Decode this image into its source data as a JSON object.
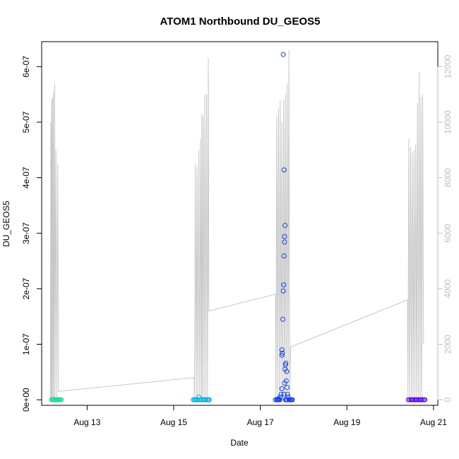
{
  "chart_data": {
    "type": "scatter",
    "title": "ATOM1 Northbound DU_GEOS5",
    "xlabel": "Date",
    "ylabel": "DU_GEOS5",
    "x_ticks": [
      "Aug 13",
      "Aug 15",
      "Aug 17",
      "Aug 19",
      "Aug 21"
    ],
    "x_tick_days": [
      13,
      15,
      17,
      19,
      21
    ],
    "xlim_days": [
      11.95,
      21.1
    ],
    "y_ticks": [
      "0e+00",
      "1e-07",
      "2e-07",
      "3e-07",
      "4e-07",
      "5e-07",
      "6e-07"
    ],
    "y_tick_values": [
      0,
      1e-07,
      2e-07,
      3e-07,
      4e-07,
      5e-07,
      6e-07
    ],
    "ylim": [
      -1e-08,
      6.45e-07
    ],
    "y2_ticks": [
      "0",
      "2000",
      "4000",
      "6000",
      "8000",
      "10000",
      "12000"
    ],
    "y2_tick_values": [
      0,
      2000,
      4000,
      6000,
      8000,
      10000,
      12000
    ],
    "y2lim": [
      -200,
      12900
    ],
    "grid": false,
    "series": [
      {
        "color": "#1ed9a4",
        "axis": "left",
        "points": [
          [
            12.18,
            0
          ],
          [
            12.2,
            0
          ],
          [
            12.22,
            0
          ],
          [
            12.24,
            0
          ],
          [
            12.26,
            0
          ],
          [
            12.28,
            0
          ],
          [
            12.3,
            0
          ],
          [
            12.32,
            0
          ],
          [
            12.34,
            0
          ],
          [
            12.36,
            0
          ],
          [
            12.38,
            0
          ],
          [
            12.4,
            0
          ]
        ]
      },
      {
        "color": "#00b4e6",
        "axis": "left",
        "points": [
          [
            15.45,
            0
          ],
          [
            15.48,
            0
          ],
          [
            15.5,
            0
          ],
          [
            15.52,
            0
          ],
          [
            15.55,
            0
          ],
          [
            15.58,
            5e-09
          ],
          [
            15.6,
            0
          ],
          [
            15.62,
            0
          ],
          [
            15.65,
            0
          ],
          [
            15.68,
            0
          ],
          [
            15.7,
            0
          ],
          [
            15.72,
            0
          ],
          [
            15.75,
            0
          ],
          [
            15.78,
            0
          ],
          [
            15.8,
            0
          ],
          [
            15.82,
            0
          ]
        ]
      },
      {
        "color": "#1740e6",
        "axis": "left",
        "points": [
          [
            17.35,
            0
          ],
          [
            17.38,
            0
          ],
          [
            17.4,
            0
          ],
          [
            17.42,
            2e-09
          ],
          [
            17.44,
            0
          ],
          [
            17.46,
            5e-09
          ],
          [
            17.48,
            1e-08
          ],
          [
            17.5,
            2e-08
          ],
          [
            17.5,
            8e-08
          ],
          [
            17.5,
            9e-08
          ],
          [
            17.51,
            8.4e-08
          ],
          [
            17.52,
            1.45e-07
          ],
          [
            17.53,
            1.96e-07
          ],
          [
            17.54,
            2.07e-07
          ],
          [
            17.55,
            2.59e-07
          ],
          [
            17.56,
            2.84e-07
          ],
          [
            17.56,
            2.94e-07
          ],
          [
            17.57,
            3.14e-07
          ],
          [
            17.55,
            4.14e-07
          ],
          [
            17.53,
            6.22e-07
          ],
          [
            17.55,
            1e-08
          ],
          [
            17.56,
            3e-08
          ],
          [
            17.57,
            5.5e-08
          ],
          [
            17.58,
            6.3e-08
          ],
          [
            17.59,
            6.6e-08
          ],
          [
            17.6,
            3.4e-08
          ],
          [
            17.61,
            5.1e-08
          ],
          [
            17.62,
            2.2e-08
          ],
          [
            17.63,
            1e-08
          ],
          [
            17.64,
            5e-09
          ],
          [
            17.66,
            0
          ],
          [
            17.68,
            0
          ],
          [
            17.7,
            0
          ],
          [
            17.72,
            0
          ],
          [
            17.74,
            0
          ],
          [
            17.42,
            0
          ],
          [
            17.45,
            0
          ],
          [
            17.58,
            0
          ],
          [
            17.6,
            0
          ],
          [
            17.62,
            0
          ]
        ]
      },
      {
        "color": "#5a10f0",
        "axis": "left",
        "points": [
          [
            20.42,
            0
          ],
          [
            20.45,
            0
          ],
          [
            20.48,
            0
          ],
          [
            20.5,
            0
          ],
          [
            20.52,
            0
          ],
          [
            20.55,
            0
          ],
          [
            20.58,
            0
          ],
          [
            20.6,
            0
          ],
          [
            20.62,
            0
          ],
          [
            20.65,
            0
          ],
          [
            20.68,
            0
          ],
          [
            20.7,
            0
          ],
          [
            20.72,
            0
          ],
          [
            20.75,
            0
          ],
          [
            20.78,
            0
          ],
          [
            20.8,
            0
          ]
        ]
      }
    ],
    "line_series": {
      "color": "#c8c8c8",
      "axis": "right",
      "points": [
        [
          12.15,
          0
        ],
        [
          12.16,
          10000
        ],
        [
          12.17,
          0
        ],
        [
          12.18,
          10800
        ],
        [
          12.19,
          0
        ],
        [
          12.2,
          10900
        ],
        [
          12.21,
          0
        ],
        [
          12.22,
          11100
        ],
        [
          12.23,
          0
        ],
        [
          12.25,
          11400
        ],
        [
          12.26,
          0
        ],
        [
          12.28,
          9000
        ],
        [
          12.3,
          0
        ],
        [
          12.32,
          8500
        ],
        [
          12.34,
          300
        ],
        [
          15.47,
          800
        ],
        [
          15.48,
          0
        ],
        [
          15.5,
          8500
        ],
        [
          15.52,
          0
        ],
        [
          15.54,
          8400
        ],
        [
          15.56,
          0
        ],
        [
          15.58,
          9000
        ],
        [
          15.6,
          0
        ],
        [
          15.62,
          9400
        ],
        [
          15.64,
          0
        ],
        [
          15.65,
          10300
        ],
        [
          15.66,
          0
        ],
        [
          15.68,
          10200
        ],
        [
          15.7,
          0
        ],
        [
          15.72,
          11000
        ],
        [
          15.74,
          0
        ],
        [
          15.76,
          11000
        ],
        [
          15.78,
          0
        ],
        [
          15.8,
          12300
        ],
        [
          15.81,
          3200
        ],
        [
          17.35,
          3800
        ],
        [
          17.36,
          0
        ],
        [
          17.38,
          10200
        ],
        [
          17.4,
          0
        ],
        [
          17.42,
          10500
        ],
        [
          17.44,
          0
        ],
        [
          17.46,
          10800
        ],
        [
          17.48,
          0
        ],
        [
          17.5,
          10000
        ],
        [
          17.52,
          0
        ],
        [
          17.54,
          10800
        ],
        [
          17.56,
          0
        ],
        [
          17.58,
          11000
        ],
        [
          17.6,
          0
        ],
        [
          17.62,
          11400
        ],
        [
          17.64,
          0
        ],
        [
          17.66,
          12600
        ],
        [
          17.68,
          0
        ],
        [
          17.7,
          1900
        ],
        [
          20.4,
          3600
        ],
        [
          20.41,
          0
        ],
        [
          20.43,
          9400
        ],
        [
          20.45,
          0
        ],
        [
          20.47,
          9100
        ],
        [
          20.49,
          0
        ],
        [
          20.51,
          8900
        ],
        [
          20.53,
          0
        ],
        [
          20.55,
          9000
        ],
        [
          20.57,
          0
        ],
        [
          20.59,
          9200
        ],
        [
          20.61,
          0
        ],
        [
          20.63,
          10700
        ],
        [
          20.65,
          0
        ],
        [
          20.67,
          11800
        ],
        [
          20.69,
          0
        ],
        [
          20.71,
          10900
        ],
        [
          20.73,
          0
        ],
        [
          20.75,
          11000
        ],
        [
          20.77,
          2000
        ]
      ]
    }
  }
}
